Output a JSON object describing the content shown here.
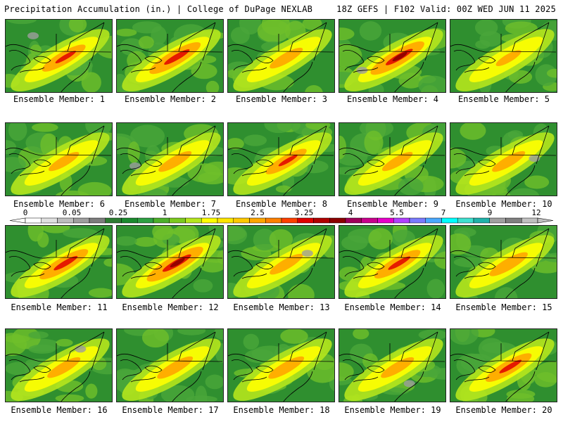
{
  "header": {
    "left": "Precipitation Accumulation (in.) | College of DuPage NEXLAB",
    "right": "18Z GEFS | F102 Valid: 00Z WED JUN 11 2025"
  },
  "members": [
    {
      "label": "Ensemble Member: 1",
      "intensity": 0.65
    },
    {
      "label": "Ensemble Member: 2",
      "intensity": 0.8
    },
    {
      "label": "Ensemble Member: 3",
      "intensity": 0.45
    },
    {
      "label": "Ensemble Member: 4",
      "intensity": 0.85
    },
    {
      "label": "Ensemble Member: 5",
      "intensity": 0.3
    },
    {
      "label": "Ensemble Member: 6",
      "intensity": 0.4
    },
    {
      "label": "Ensemble Member: 7",
      "intensity": 0.45
    },
    {
      "label": "Ensemble Member: 8",
      "intensity": 0.6
    },
    {
      "label": "Ensemble Member: 9",
      "intensity": 0.4
    },
    {
      "label": "Ensemble Member: 10",
      "intensity": 0.45
    },
    {
      "label": "Ensemble Member: 11",
      "intensity": 0.75
    },
    {
      "label": "Ensemble Member: 12",
      "intensity": 0.9
    },
    {
      "label": "Ensemble Member: 13",
      "intensity": 0.45
    },
    {
      "label": "Ensemble Member: 14",
      "intensity": 0.7
    },
    {
      "label": "Ensemble Member: 15",
      "intensity": 0.55
    },
    {
      "label": "Ensemble Member: 16",
      "intensity": 0.45
    },
    {
      "label": "Ensemble Member: 17",
      "intensity": 0.5
    },
    {
      "label": "Ensemble Member: 18",
      "intensity": 0.5
    },
    {
      "label": "Ensemble Member: 19",
      "intensity": 0.45
    },
    {
      "label": "Ensemble Member: 20",
      "intensity": 0.7
    }
  ],
  "colorbar": {
    "tick_labels": [
      "0",
      "0.05",
      "0.25",
      "1",
      "1.75",
      "2.5",
      "3.25",
      "4",
      "5.5",
      "7",
      "9",
      "12"
    ],
    "colors": [
      "#ffffff",
      "#e0e0e0",
      "#bdbdbd",
      "#9e9e9e",
      "#7d7d7d",
      "#2e7d32",
      "#1b8a2e",
      "#2ea043",
      "#4caf2a",
      "#7cc91e",
      "#b5e61d",
      "#ffff00",
      "#ffe600",
      "#ffc800",
      "#ffa500",
      "#ff8000",
      "#ff4000",
      "#e00000",
      "#b00000",
      "#8b0000",
      "#a0005a",
      "#c8008c",
      "#e600c8",
      "#b040ff",
      "#7a7aff",
      "#4aa8ff",
      "#00ffff",
      "#40e0d0",
      "#20b2aa",
      "#a0a0a0",
      "#808080",
      "#c0c0c0"
    ]
  }
}
